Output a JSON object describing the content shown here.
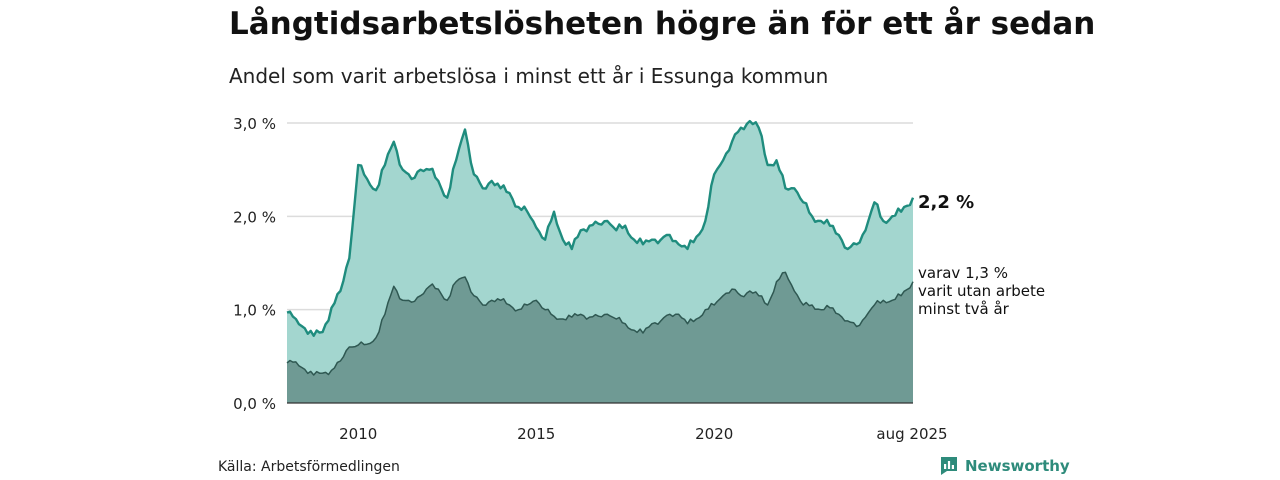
{
  "title": "Långtidsarbetslösheten högre än för ett år sedan",
  "subtitle": "Andel som varit arbetslösa i minst ett år i Essunga kommun",
  "source": "Källa: Arbetsförmedlingen",
  "brand": "Newsworthy",
  "labels": {
    "total_value": "2,2 %",
    "sub_line1": "varav 1,3 %",
    "sub_line2": "varit utan arbete",
    "sub_line3": "minst två år"
  },
  "colors": {
    "total_line": "#1f8c7e",
    "total_fill": "#a3d6cf",
    "sub_line": "#2f5852",
    "sub_fill": "#6f9a94",
    "grid": "#dcdcdc",
    "brand": "#2e8b7b"
  },
  "chart_data": {
    "type": "area",
    "title": "Långtidsarbetslösheten högre än för ett år sedan",
    "subtitle": "Andel som varit arbetslösa i minst ett år i Essunga kommun",
    "x_ticks": [
      "2010",
      "2015",
      "2020",
      "aug 2025"
    ],
    "y_ticks": [
      "0,0 %",
      "1,0 %",
      "2,0 %",
      "3,0 %"
    ],
    "ylim": [
      0,
      3.0
    ],
    "xlim": [
      "2008-01",
      "2025-08"
    ],
    "grid": true,
    "legend": "none",
    "series": [
      {
        "name": "",
        "anchors": [
          [
            "2008-01",
            0.97
          ],
          [
            "2008-04",
            0.9
          ],
          [
            "2008-07",
            0.8
          ],
          [
            "2008-10",
            0.72
          ],
          [
            "2009-01",
            0.76
          ],
          [
            "2009-04",
            1.02
          ],
          [
            "2009-07",
            1.2
          ],
          [
            "2009-10",
            1.55
          ],
          [
            "2010-01",
            2.55
          ],
          [
            "2010-04",
            2.4
          ],
          [
            "2010-07",
            2.28
          ],
          [
            "2010-10",
            2.55
          ],
          [
            "2011-01",
            2.8
          ],
          [
            "2011-04",
            2.5
          ],
          [
            "2011-07",
            2.4
          ],
          [
            "2011-10",
            2.5
          ],
          [
            "2012-01",
            2.5
          ],
          [
            "2012-04",
            2.38
          ],
          [
            "2012-07",
            2.2
          ],
          [
            "2012-10",
            2.6
          ],
          [
            "2013-01",
            2.93
          ],
          [
            "2013-04",
            2.45
          ],
          [
            "2013-07",
            2.3
          ],
          [
            "2013-10",
            2.38
          ],
          [
            "2014-01",
            2.3
          ],
          [
            "2014-04",
            2.25
          ],
          [
            "2014-07",
            2.1
          ],
          [
            "2014-10",
            2.05
          ],
          [
            "2015-01",
            1.88
          ],
          [
            "2015-04",
            1.75
          ],
          [
            "2015-07",
            2.05
          ],
          [
            "2015-10",
            1.75
          ],
          [
            "2016-01",
            1.65
          ],
          [
            "2016-04",
            1.85
          ],
          [
            "2016-07",
            1.9
          ],
          [
            "2016-10",
            1.92
          ],
          [
            "2017-01",
            1.95
          ],
          [
            "2017-04",
            1.85
          ],
          [
            "2017-07",
            1.9
          ],
          [
            "2017-10",
            1.75
          ],
          [
            "2018-01",
            1.7
          ],
          [
            "2018-04",
            1.75
          ],
          [
            "2018-07",
            1.75
          ],
          [
            "2018-10",
            1.8
          ],
          [
            "2019-01",
            1.7
          ],
          [
            "2019-04",
            1.65
          ],
          [
            "2019-07",
            1.78
          ],
          [
            "2019-10",
            1.95
          ],
          [
            "2020-01",
            2.45
          ],
          [
            "2020-04",
            2.6
          ],
          [
            "2020-07",
            2.8
          ],
          [
            "2020-10",
            2.95
          ],
          [
            "2021-01",
            3.02
          ],
          [
            "2021-04",
            2.95
          ],
          [
            "2021-07",
            2.55
          ],
          [
            "2021-10",
            2.6
          ],
          [
            "2022-01",
            2.3
          ],
          [
            "2022-04",
            2.3
          ],
          [
            "2022-07",
            2.15
          ],
          [
            "2022-10",
            2.0
          ],
          [
            "2023-01",
            1.95
          ],
          [
            "2023-04",
            1.9
          ],
          [
            "2023-07",
            1.8
          ],
          [
            "2023-10",
            1.65
          ],
          [
            "2024-01",
            1.7
          ],
          [
            "2024-04",
            1.85
          ],
          [
            "2024-07",
            2.15
          ],
          [
            "2024-10",
            1.95
          ],
          [
            "2025-01",
            2.0
          ],
          [
            "2025-04",
            2.05
          ],
          [
            "2025-08",
            2.2
          ]
        ]
      },
      {
        "name": "",
        "anchors": [
          [
            "2008-01",
            0.43
          ],
          [
            "2008-04",
            0.44
          ],
          [
            "2008-07",
            0.36
          ],
          [
            "2008-10",
            0.3
          ],
          [
            "2009-01",
            0.32
          ],
          [
            "2009-04",
            0.35
          ],
          [
            "2009-07",
            0.45
          ],
          [
            "2009-10",
            0.6
          ],
          [
            "2010-01",
            0.62
          ],
          [
            "2010-04",
            0.63
          ],
          [
            "2010-07",
            0.7
          ],
          [
            "2010-10",
            0.95
          ],
          [
            "2011-01",
            1.25
          ],
          [
            "2011-04",
            1.1
          ],
          [
            "2011-07",
            1.08
          ],
          [
            "2011-10",
            1.15
          ],
          [
            "2012-01",
            1.25
          ],
          [
            "2012-04",
            1.22
          ],
          [
            "2012-07",
            1.1
          ],
          [
            "2012-10",
            1.3
          ],
          [
            "2013-01",
            1.35
          ],
          [
            "2013-04",
            1.15
          ],
          [
            "2013-07",
            1.05
          ],
          [
            "2013-10",
            1.1
          ],
          [
            "2014-01",
            1.1
          ],
          [
            "2014-04",
            1.05
          ],
          [
            "2014-07",
            1.0
          ],
          [
            "2014-10",
            1.05
          ],
          [
            "2015-01",
            1.1
          ],
          [
            "2015-04",
            1.0
          ],
          [
            "2015-07",
            0.93
          ],
          [
            "2015-10",
            0.9
          ],
          [
            "2016-01",
            0.92
          ],
          [
            "2016-04",
            0.95
          ],
          [
            "2016-07",
            0.92
          ],
          [
            "2016-10",
            0.93
          ],
          [
            "2017-01",
            0.95
          ],
          [
            "2017-04",
            0.9
          ],
          [
            "2017-07",
            0.85
          ],
          [
            "2017-10",
            0.78
          ],
          [
            "2018-01",
            0.75
          ],
          [
            "2018-04",
            0.85
          ],
          [
            "2018-07",
            0.88
          ],
          [
            "2018-10",
            0.95
          ],
          [
            "2019-01",
            0.95
          ],
          [
            "2019-04",
            0.85
          ],
          [
            "2019-07",
            0.9
          ],
          [
            "2019-10",
            1.0
          ],
          [
            "2020-01",
            1.05
          ],
          [
            "2020-04",
            1.15
          ],
          [
            "2020-07",
            1.22
          ],
          [
            "2020-10",
            1.15
          ],
          [
            "2021-01",
            1.2
          ],
          [
            "2021-04",
            1.15
          ],
          [
            "2021-07",
            1.05
          ],
          [
            "2021-10",
            1.3
          ],
          [
            "2022-01",
            1.4
          ],
          [
            "2022-04",
            1.2
          ],
          [
            "2022-07",
            1.05
          ],
          [
            "2022-10",
            1.05
          ],
          [
            "2023-01",
            1.0
          ],
          [
            "2023-04",
            1.02
          ],
          [
            "2023-07",
            0.95
          ],
          [
            "2023-10",
            0.88
          ],
          [
            "2024-01",
            0.82
          ],
          [
            "2024-04",
            0.92
          ],
          [
            "2024-07",
            1.05
          ],
          [
            "2024-10",
            1.1
          ],
          [
            "2025-01",
            1.1
          ],
          [
            "2025-04",
            1.15
          ],
          [
            "2025-08",
            1.3
          ]
        ]
      }
    ]
  }
}
